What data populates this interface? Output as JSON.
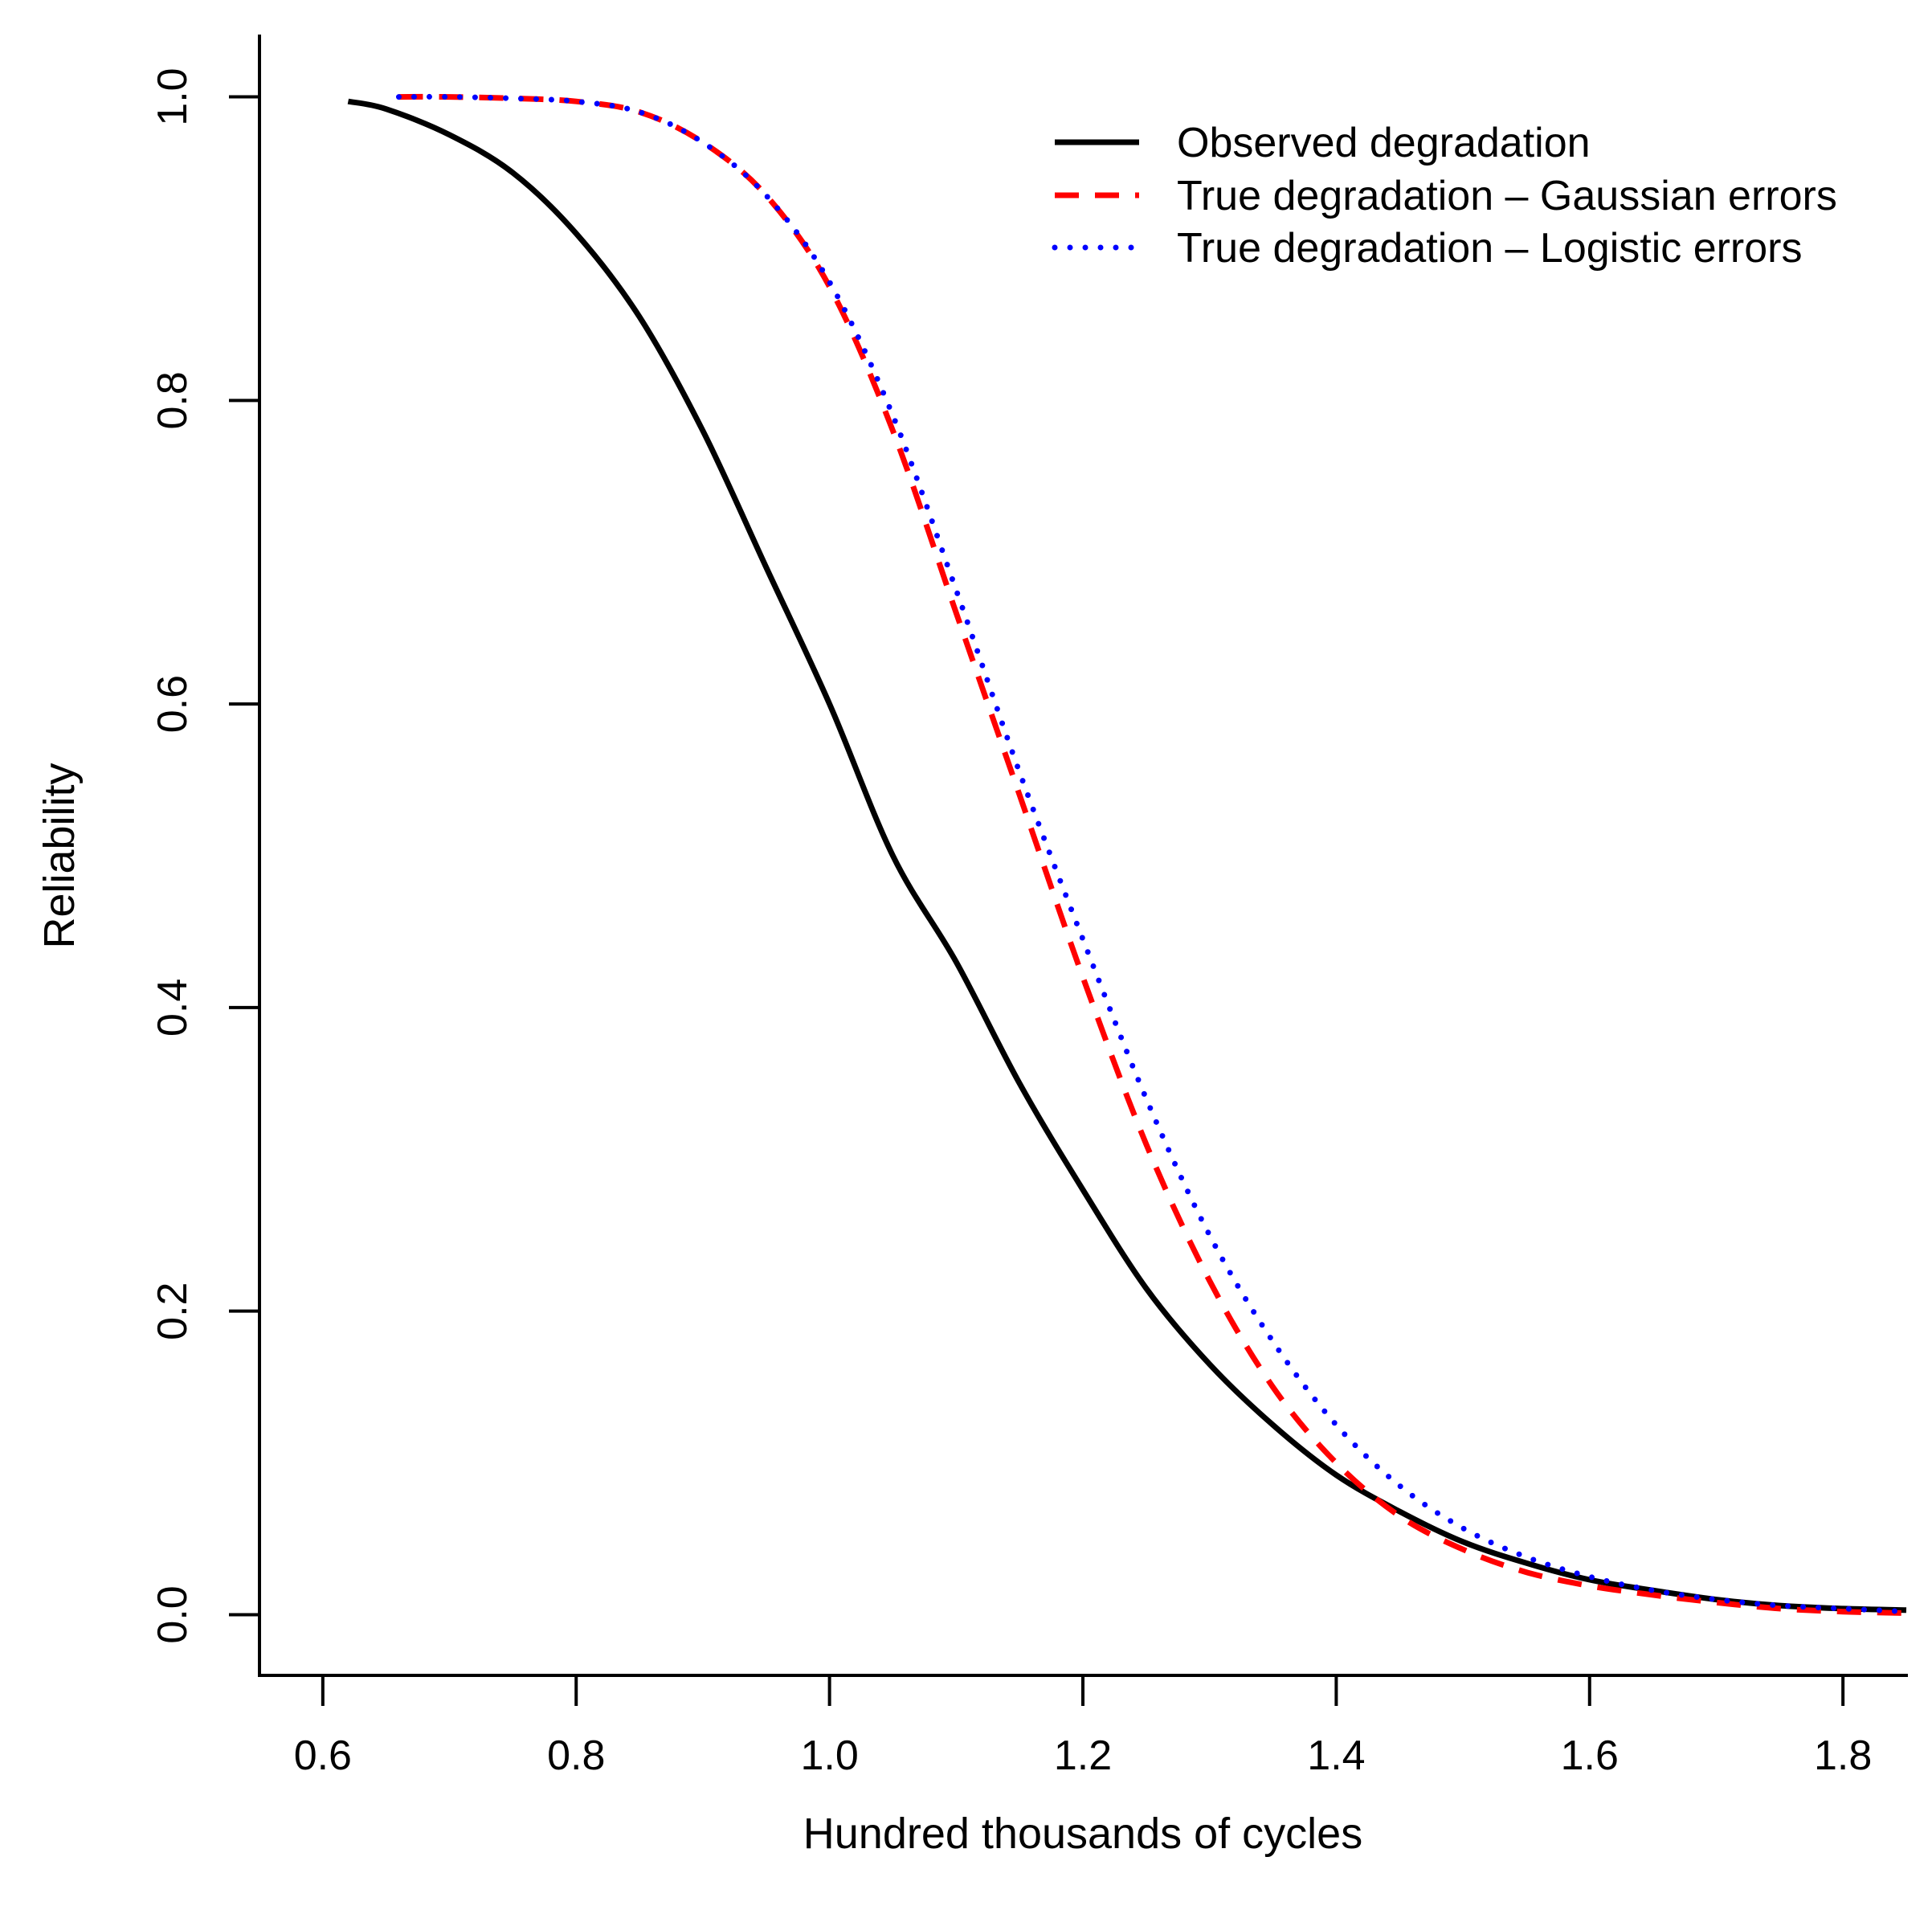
{
  "chart_data": {
    "type": "line",
    "title": "",
    "xlabel": "Hundred thousands of cycles",
    "ylabel": "Reliability",
    "xlim": [
      0.55,
      1.85
    ],
    "ylim": [
      -0.04,
      1.04
    ],
    "xticks": [
      0.6,
      0.8,
      1.0,
      1.2,
      1.4,
      1.6,
      1.8
    ],
    "xtick_labels": [
      "0.6",
      "0.8",
      "1.0",
      "1.2",
      "1.4",
      "1.6",
      "1.8"
    ],
    "yticks": [
      0.0,
      0.2,
      0.4,
      0.6,
      0.8,
      1.0
    ],
    "ytick_labels": [
      "0.0",
      "0.2",
      "0.4",
      "0.6",
      "0.8",
      "1.0"
    ],
    "grid": false,
    "legend_position": "top-right",
    "series": [
      {
        "name": "Observed degradation",
        "color": "#000000",
        "style": "solid",
        "x": [
          0.62,
          0.65,
          0.7,
          0.75,
          0.8,
          0.85,
          0.9,
          0.95,
          1.0,
          1.05,
          1.1,
          1.15,
          1.2,
          1.25,
          1.3,
          1.35,
          1.4,
          1.45,
          1.5,
          1.55,
          1.6,
          1.65,
          1.7,
          1.75,
          1.8,
          1.85
        ],
        "y": [
          0.997,
          0.992,
          0.975,
          0.95,
          0.91,
          0.855,
          0.78,
          0.69,
          0.6,
          0.5,
          0.43,
          0.35,
          0.28,
          0.215,
          0.165,
          0.125,
          0.092,
          0.068,
          0.048,
          0.034,
          0.023,
          0.016,
          0.01,
          0.006,
          0.004,
          0.003
        ]
      },
      {
        "name": "True degradation – Gaussian errors",
        "color": "#ff0000",
        "style": "dashed",
        "x": [
          0.66,
          0.7,
          0.75,
          0.8,
          0.85,
          0.9,
          0.95,
          1.0,
          1.05,
          1.1,
          1.15,
          1.2,
          1.25,
          1.3,
          1.35,
          1.4,
          1.45,
          1.5,
          1.55,
          1.6,
          1.65,
          1.7,
          1.75,
          1.8,
          1.85
        ],
        "y": [
          1.0,
          1.0,
          0.999,
          0.997,
          0.99,
          0.97,
          0.935,
          0.875,
          0.78,
          0.66,
          0.54,
          0.42,
          0.31,
          0.22,
          0.15,
          0.1,
          0.065,
          0.043,
          0.028,
          0.019,
          0.013,
          0.008,
          0.004,
          0.002,
          0.001
        ]
      },
      {
        "name": "True degradation – Logistic errors",
        "color": "#0000ff",
        "style": "dotted",
        "x": [
          0.66,
          0.7,
          0.75,
          0.8,
          0.85,
          0.9,
          0.95,
          1.0,
          1.05,
          1.1,
          1.15,
          1.2,
          1.25,
          1.3,
          1.35,
          1.4,
          1.45,
          1.5,
          1.55,
          1.6,
          1.65,
          1.7,
          1.75,
          1.8,
          1.85
        ],
        "y": [
          1.0,
          1.0,
          0.999,
          0.997,
          0.99,
          0.97,
          0.935,
          0.878,
          0.79,
          0.675,
          0.555,
          0.445,
          0.34,
          0.25,
          0.18,
          0.125,
          0.085,
          0.057,
          0.038,
          0.025,
          0.016,
          0.01,
          0.006,
          0.004,
          0.002
        ]
      }
    ]
  }
}
